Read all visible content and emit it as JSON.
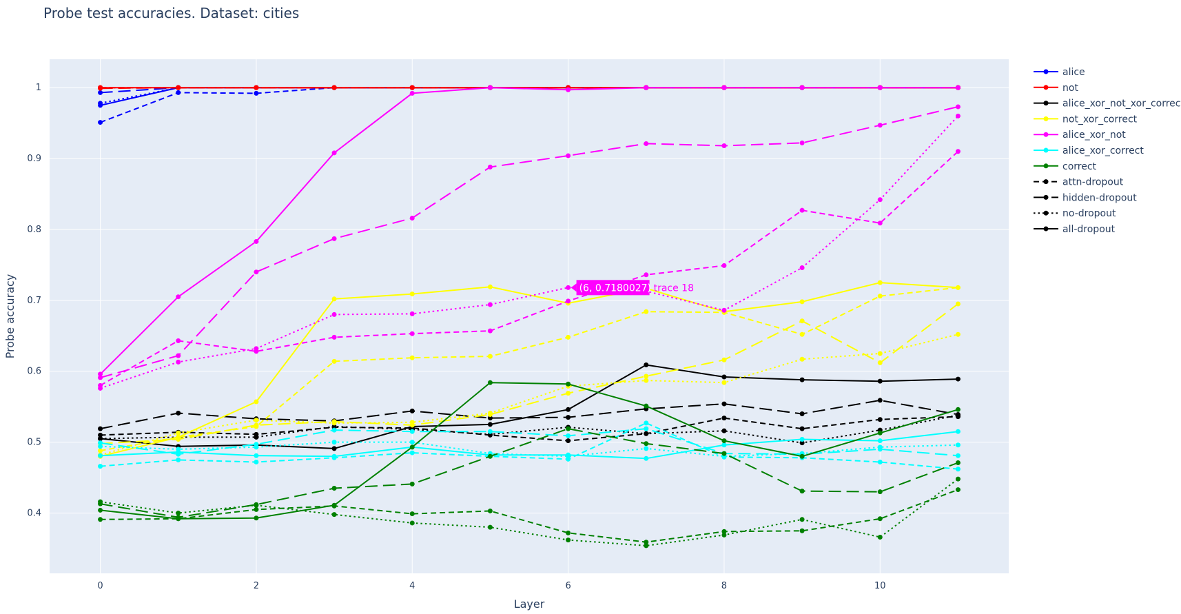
{
  "chart_data": {
    "type": "line",
    "title": "Probe test accuracies. Dataset: cities",
    "xlabel": "Layer",
    "ylabel": "Probe accuracy",
    "xlim": [
      -0.65,
      11.65
    ],
    "ylim": [
      0.315,
      1.04
    ],
    "x_ticks": [
      0,
      2,
      4,
      6,
      8,
      10
    ],
    "y_ticks": [
      0.4,
      0.5,
      0.6,
      0.7,
      0.8,
      0.9,
      1
    ],
    "y_tick_labels": [
      "0.4",
      "0.5",
      "0.6",
      "0.7",
      "0.8",
      "0.9",
      "1"
    ],
    "grid": true,
    "legend_position": "right",
    "plot_background": "#e5ecf6",
    "x": [
      0,
      1,
      2,
      3,
      4,
      5,
      6,
      7,
      8,
      9,
      10,
      11
    ],
    "legend": [
      {
        "name": "alice",
        "color": "#0000ff",
        "dash": "solid"
      },
      {
        "name": "not",
        "color": "#ff0000",
        "dash": "solid"
      },
      {
        "name": "alice_xor_not_xor_correct",
        "color": "#000000",
        "dash": "solid"
      },
      {
        "name": "not_xor_correct",
        "color": "#ffff00",
        "dash": "solid"
      },
      {
        "name": "alice_xor_not",
        "color": "#ff00ff",
        "dash": "solid"
      },
      {
        "name": "alice_xor_correct",
        "color": "#00ffff",
        "dash": "solid"
      },
      {
        "name": "correct",
        "color": "#008000",
        "dash": "solid"
      },
      {
        "name": "attn-dropout",
        "color": "#000000",
        "dash": "dash"
      },
      {
        "name": "hidden-dropout",
        "color": "#000000",
        "dash": "longdash"
      },
      {
        "name": "no-dropout",
        "color": "#000000",
        "dash": "dot"
      },
      {
        "name": "all-dropout",
        "color": "#000000",
        "dash": "solid"
      }
    ],
    "series": [
      {
        "group": "alice",
        "color": "#0000ff",
        "dash": "dash",
        "values": [
          0.951,
          0.993,
          0.992,
          1.0,
          1.0,
          1.0,
          1.0,
          1.0,
          1.0,
          1.0,
          1.0,
          1.0
        ]
      },
      {
        "group": "alice",
        "color": "#0000ff",
        "dash": "longdash",
        "values": [
          0.993,
          1.0,
          1.0,
          1.0,
          1.0,
          1.0,
          1.0,
          1.0,
          1.0,
          1.0,
          1.0,
          1.0
        ]
      },
      {
        "group": "alice",
        "color": "#0000ff",
        "dash": "dot",
        "values": [
          0.978,
          1.0,
          1.0,
          1.0,
          1.0,
          1.0,
          1.0,
          1.0,
          1.0,
          1.0,
          1.0,
          1.0
        ]
      },
      {
        "group": "alice",
        "color": "#0000ff",
        "dash": "solid",
        "values": [
          0.975,
          1.0,
          1.0,
          1.0,
          1.0,
          1.0,
          1.0,
          1.0,
          1.0,
          1.0,
          1.0,
          1.0
        ]
      },
      {
        "group": "not",
        "color": "#ff0000",
        "dash": "dash",
        "values": [
          1.0,
          1.0,
          1.0,
          1.0,
          1.0,
          1.0,
          1.0,
          1.0,
          1.0,
          1.0,
          1.0,
          1.0
        ]
      },
      {
        "group": "not",
        "color": "#ff0000",
        "dash": "longdash",
        "values": [
          0.999,
          1.0,
          1.0,
          1.0,
          1.0,
          1.0,
          1.0,
          1.0,
          1.0,
          1.0,
          1.0,
          1.0
        ]
      },
      {
        "group": "not",
        "color": "#ff0000",
        "dash": "dot",
        "values": [
          1.0,
          1.0,
          1.0,
          1.0,
          1.0,
          1.0,
          1.0,
          1.0,
          1.0,
          1.0,
          1.0,
          1.0
        ]
      },
      {
        "group": "not",
        "color": "#ff0000",
        "dash": "solid",
        "values": [
          1.0,
          1.0,
          1.0,
          1.0,
          1.0,
          1.0,
          1.0,
          1.0,
          1.0,
          1.0,
          1.0,
          1.0
        ]
      },
      {
        "group": "alice_xor_not_xor_correct",
        "color": "#000000",
        "dash": "dash",
        "values": [
          0.51,
          0.514,
          0.511,
          0.521,
          0.52,
          0.51,
          0.502,
          0.512,
          0.534,
          0.519,
          0.532,
          0.536
        ]
      },
      {
        "group": "alice_xor_not_xor_correct",
        "color": "#000000",
        "dash": "longdash",
        "values": [
          0.519,
          0.541,
          0.533,
          0.53,
          0.544,
          0.534,
          0.535,
          0.547,
          0.554,
          0.54,
          0.559,
          0.539
        ]
      },
      {
        "group": "alice_xor_not_xor_correct",
        "color": "#000000",
        "dash": "dot",
        "values": [
          0.505,
          0.507,
          0.507,
          0.522,
          0.518,
          0.511,
          0.521,
          0.512,
          0.516,
          0.499,
          0.517,
          0.538
        ]
      },
      {
        "group": "alice_xor_not_xor_correct",
        "color": "#000000",
        "dash": "solid",
        "values": [
          0.505,
          0.494,
          0.496,
          0.491,
          0.522,
          0.525,
          0.546,
          0.609,
          0.592,
          0.588,
          0.586,
          0.589
        ]
      },
      {
        "group": "not_xor_correct",
        "color": "#ffff00",
        "dash": "dash",
        "values": [
          0.488,
          0.507,
          0.522,
          0.614,
          0.619,
          0.621,
          0.648,
          0.684,
          0.683,
          0.652,
          0.706,
          0.718
        ]
      },
      {
        "group": "not_xor_correct",
        "color": "#ffff00",
        "dash": "longdash",
        "values": [
          0.498,
          0.504,
          0.524,
          0.529,
          0.524,
          0.539,
          0.569,
          0.593,
          0.616,
          0.671,
          0.612,
          0.695
        ]
      },
      {
        "group": "not_xor_correct",
        "color": "#ffff00",
        "dash": "dot",
        "values": [
          0.482,
          0.513,
          0.531,
          0.527,
          0.528,
          0.541,
          0.579,
          0.587,
          0.584,
          0.617,
          0.625,
          0.652
        ]
      },
      {
        "group": "not_xor_correct",
        "color": "#ffff00",
        "dash": "solid",
        "values": [
          0.48,
          0.507,
          0.557,
          0.702,
          0.709,
          0.719,
          0.696,
          0.717,
          0.684,
          0.698,
          0.725,
          0.718
        ]
      },
      {
        "group": "alice_xor_not",
        "color": "#ff00ff",
        "dash": "dash",
        "values": [
          0.58,
          0.643,
          0.628,
          0.648,
          0.653,
          0.657,
          0.699,
          0.736,
          0.749,
          0.827,
          0.809,
          0.91
        ]
      },
      {
        "group": "alice_xor_not",
        "color": "#ff00ff",
        "dash": "longdash",
        "values": [
          0.591,
          0.622,
          0.74,
          0.787,
          0.816,
          0.888,
          0.904,
          0.921,
          0.918,
          0.922,
          0.947,
          0.973
        ]
      },
      {
        "group": "alice_xor_not",
        "color": "#ff00ff",
        "dash": "dot",
        "values": [
          0.576,
          0.613,
          0.632,
          0.68,
          0.681,
          0.694,
          0.718,
          0.713,
          0.686,
          0.746,
          0.842,
          0.96
        ]
      },
      {
        "group": "alice_xor_not",
        "color": "#ff00ff",
        "dash": "solid",
        "values": [
          0.596,
          0.705,
          0.783,
          0.908,
          0.992,
          1.0,
          0.997,
          1.0,
          1.0,
          1.0,
          1.0,
          1.0
        ]
      },
      {
        "group": "alice_xor_correct",
        "color": "#00ffff",
        "dash": "dash",
        "values": [
          0.466,
          0.475,
          0.472,
          0.478,
          0.485,
          0.48,
          0.476,
          0.527,
          0.479,
          0.478,
          0.472,
          0.462
        ]
      },
      {
        "group": "alice_xor_correct",
        "color": "#00ffff",
        "dash": "longdash",
        "values": [
          0.499,
          0.483,
          0.497,
          0.517,
          0.515,
          0.515,
          0.509,
          0.519,
          0.484,
          0.483,
          0.49,
          0.481
        ]
      },
      {
        "group": "alice_xor_correct",
        "color": "#00ffff",
        "dash": "dot",
        "values": [
          0.494,
          0.49,
          0.493,
          0.5,
          0.5,
          0.484,
          0.48,
          0.491,
          0.48,
          0.484,
          0.493,
          0.496
        ]
      },
      {
        "group": "alice_xor_correct",
        "color": "#00ffff",
        "dash": "solid",
        "values": [
          0.481,
          0.486,
          0.481,
          0.48,
          0.493,
          0.482,
          0.482,
          0.477,
          0.496,
          0.504,
          0.502,
          0.515
        ]
      },
      {
        "group": "correct",
        "color": "#008000",
        "dash": "dash",
        "values": [
          0.391,
          0.392,
          0.405,
          0.41,
          0.399,
          0.403,
          0.372,
          0.359,
          0.374,
          0.375,
          0.392,
          0.433
        ]
      },
      {
        "group": "correct",
        "color": "#008000",
        "dash": "longdash",
        "values": [
          0.413,
          0.394,
          0.412,
          0.435,
          0.441,
          0.48,
          0.519,
          0.498,
          0.484,
          0.431,
          0.43,
          0.471
        ]
      },
      {
        "group": "correct",
        "color": "#008000",
        "dash": "dot",
        "values": [
          0.416,
          0.4,
          0.411,
          0.398,
          0.386,
          0.38,
          0.362,
          0.354,
          0.369,
          0.391,
          0.366,
          0.448
        ]
      },
      {
        "group": "correct",
        "color": "#008000",
        "dash": "solid",
        "values": [
          0.404,
          0.392,
          0.393,
          0.411,
          0.493,
          0.584,
          0.582,
          0.551,
          0.502,
          0.48,
          0.513,
          0.546
        ]
      }
    ],
    "hover": {
      "point_label": "(6, 0.7180027)",
      "trace_label": "trace 18",
      "x": 6,
      "y": 0.718,
      "color": "#ff00ff"
    }
  }
}
